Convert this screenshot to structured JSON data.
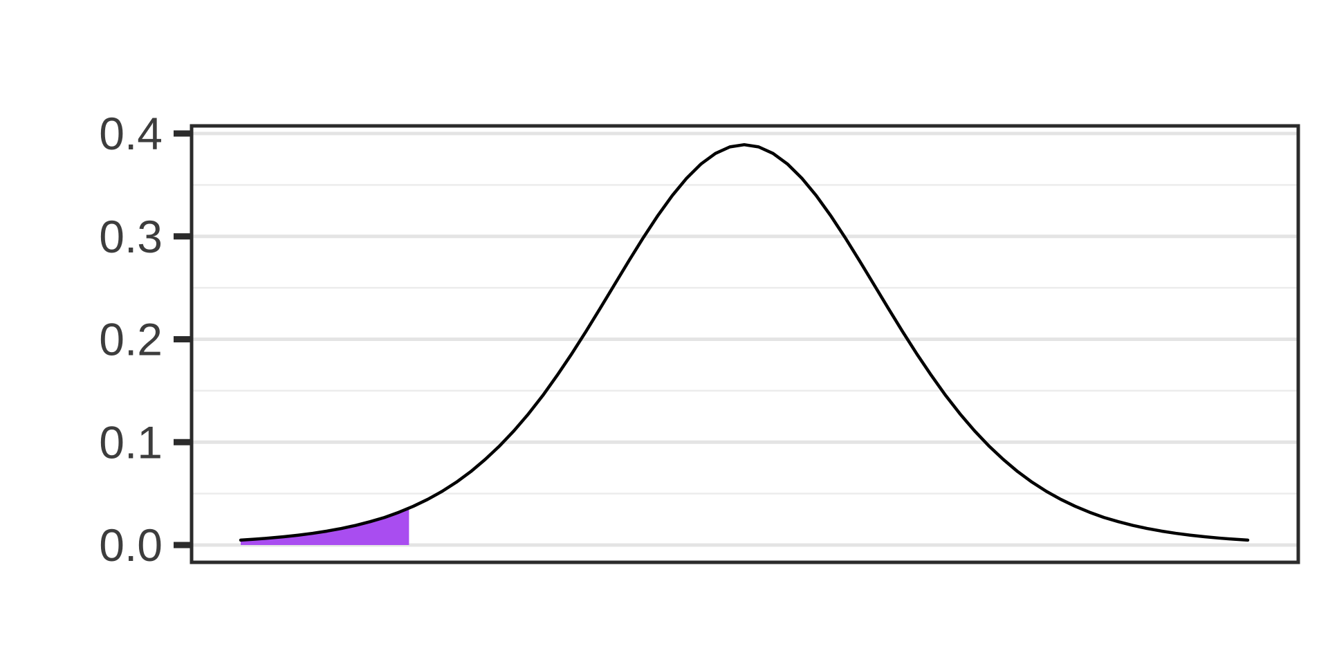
{
  "figure": {
    "background": "#ffffff",
    "title": "",
    "has_x_axis_labels": false
  },
  "style": {
    "frame_color": "#2b2b2b",
    "grid_major_color": "#e4e4e4",
    "grid_minor_color": "#ececec",
    "tick_label_color": "#3d3d3d",
    "curve_color": "#000000",
    "shade_color": "#a94df0",
    "background": "#ffffff"
  },
  "chart_data": {
    "type": "area",
    "subtype": "probability density curve with shaded left tail",
    "title": "",
    "xlabel": "",
    "ylabel": "",
    "legend": "none",
    "x_axis": {
      "range_shown": [
        -3.85,
        3.85
      ],
      "tick_labels": []
    },
    "y_axis": {
      "range_shown": [
        -0.017,
        0.407
      ],
      "ticks": [
        0.0,
        0.1,
        0.2,
        0.3,
        0.4
      ],
      "tick_labels": [
        "0.0",
        "0.1",
        "0.2",
        "0.3",
        "0.4"
      ],
      "minor_ticks": [
        0.05,
        0.15,
        0.25,
        0.35
      ]
    },
    "grid": {
      "horizontal_major": true,
      "horizontal_minor": true,
      "vertical": false
    },
    "series": [
      {
        "name": "bell-shaped density curve (peak 0.389 at x = 0, t-distribution-like)",
        "type": "line",
        "color": "#000000",
        "x": [
          -3.5,
          -3.4,
          -3.3,
          -3.2,
          -3.1,
          -3.0,
          -2.9,
          -2.8,
          -2.7,
          -2.6,
          -2.5,
          -2.4,
          -2.3,
          -2.2,
          -2.1,
          -2.0,
          -1.9,
          -1.8,
          -1.7,
          -1.6,
          -1.5,
          -1.4,
          -1.3,
          -1.2,
          -1.1,
          -1.0,
          -0.9,
          -0.8,
          -0.7,
          -0.6,
          -0.5,
          -0.4,
          -0.3,
          -0.2,
          -0.1,
          0.0,
          0.1,
          0.2,
          0.3,
          0.4,
          0.5,
          0.6,
          0.7,
          0.8,
          0.9,
          1.0,
          1.1,
          1.2,
          1.3,
          1.4,
          1.5,
          1.6,
          1.7,
          1.8,
          1.9,
          2.0,
          2.1,
          2.2,
          2.3,
          2.4,
          2.5,
          2.6,
          2.7,
          2.8,
          2.9,
          3.0,
          3.1,
          3.2,
          3.3,
          3.4,
          3.5
        ],
        "y": [
          0.00479,
          0.00569,
          0.00677,
          0.00805,
          0.00958,
          0.01139,
          0.01355,
          0.01611,
          0.01914,
          0.02273,
          0.02679,
          0.03187,
          0.03769,
          0.0444,
          0.05217,
          0.06115,
          0.07143,
          0.08327,
          0.09641,
          0.11111,
          0.12745,
          0.14536,
          0.16498,
          0.18567,
          0.20761,
          0.23036,
          0.25352,
          0.27663,
          0.2991,
          0.32033,
          0.3397,
          0.35658,
          0.3704,
          0.38066,
          0.38697,
          0.38911,
          0.38697,
          0.38066,
          0.3704,
          0.35658,
          0.3397,
          0.32033,
          0.2991,
          0.27663,
          0.25352,
          0.23036,
          0.20761,
          0.18567,
          0.16498,
          0.14536,
          0.12745,
          0.11111,
          0.09641,
          0.08327,
          0.07143,
          0.06115,
          0.05217,
          0.0444,
          0.03769,
          0.03187,
          0.02679,
          0.02273,
          0.01914,
          0.01611,
          0.01355,
          0.01139,
          0.00958,
          0.00805,
          0.00677,
          0.00569,
          0.00479
        ]
      }
    ],
    "shaded_region": {
      "label": "left tail area under curve",
      "x_from": -3.5,
      "x_to": -2.33,
      "y_at_boundary": 0.0358,
      "baseline": 0,
      "fill_color": "#a94df0"
    },
    "peak": {
      "x": 0,
      "y": 0.389
    }
  }
}
